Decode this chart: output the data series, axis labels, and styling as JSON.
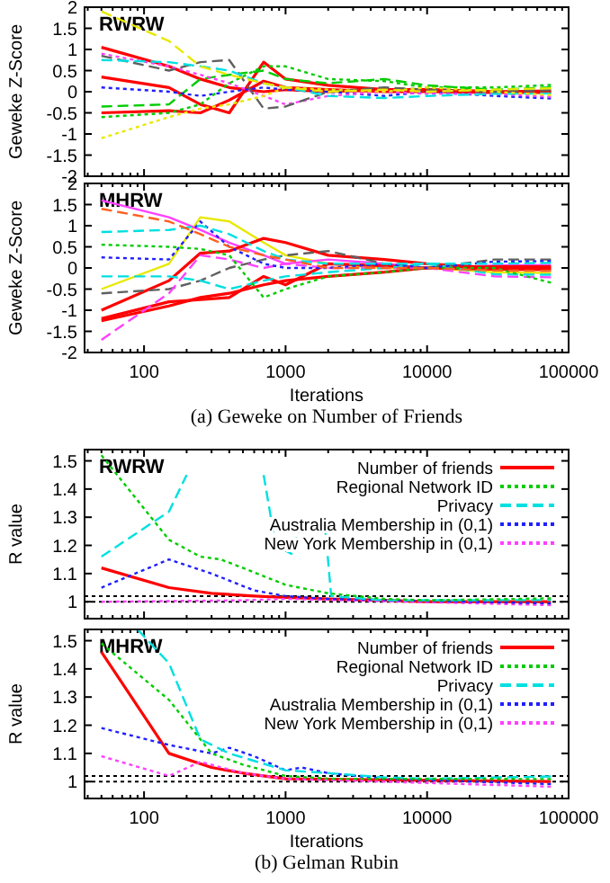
{
  "chart_data": [
    {
      "type": "line",
      "title": "RWRW",
      "ylabel": "Geweke Z-Score",
      "log": "x",
      "xlim": [
        38,
        100000
      ],
      "xticks": [
        {
          "value": 100,
          "label": null
        },
        {
          "value": 1000,
          "label": null
        },
        {
          "value": 10000,
          "label": null
        },
        {
          "value": 100000,
          "label": null
        }
      ],
      "ylim": [
        -2,
        2
      ],
      "yticks": [
        -2,
        -1.5,
        -1,
        -0.5,
        0,
        0.5,
        1,
        1.5,
        2
      ],
      "tick_labels": "y",
      "x": [
        50,
        150,
        250,
        400,
        700,
        1000,
        2000,
        5000,
        10000,
        30000,
        75000
      ],
      "series": [
        {
          "color": "#ff0000",
          "line_style": "solid",
          "values": [
            1.05,
            0.6,
            0.3,
            0.1,
            0.0,
            0.05,
            0.0,
            0.05,
            0.05,
            0.0,
            0.0
          ]
        },
        {
          "color": "#ff0000",
          "line_style": "solid",
          "values": [
            -0.5,
            -0.45,
            -0.5,
            -0.2,
            0.25,
            0.1,
            0.05,
            0.0,
            0.0,
            -0.02,
            -0.02
          ]
        },
        {
          "color": "#ff0000",
          "line_style": "solid",
          "values": [
            0.35,
            0.1,
            -0.3,
            -0.5,
            0.7,
            0.3,
            0.15,
            0.05,
            0.05,
            0.0,
            0.02
          ]
        },
        {
          "color": "#e8e800",
          "line_style": "dotted",
          "values": [
            -1.1,
            -0.6,
            -0.4,
            -0.3,
            -0.1,
            0.1,
            0.05,
            0.0,
            0.1,
            0.0,
            -0.08
          ]
        },
        {
          "color": "#e8e800",
          "line_style": "dashed",
          "values": [
            1.9,
            1.2,
            0.6,
            0.4,
            0.2,
            0.1,
            0.0,
            0.05,
            0.0,
            0.05,
            0.08
          ]
        },
        {
          "color": "#00cc00",
          "line_style": "dotted",
          "values": [
            -0.6,
            -0.5,
            -0.3,
            0.2,
            0.6,
            0.6,
            0.3,
            0.25,
            0.1,
            0.1,
            0.16
          ]
        },
        {
          "color": "#00e0e0",
          "line_style": "dashed",
          "values": [
            0.75,
            0.7,
            0.6,
            0.5,
            0.2,
            0.1,
            -0.1,
            -0.15,
            -0.1,
            -0.05,
            -0.04
          ]
        },
        {
          "color": "#606060",
          "line_style": "dashed",
          "values": [
            0.85,
            0.5,
            0.7,
            0.75,
            -0.4,
            -0.35,
            0.0,
            0.1,
            0.05,
            0.0,
            0.04
          ]
        },
        {
          "color": "#ff40ff",
          "line_style": "dotted",
          "values": [
            0.9,
            0.6,
            0.4,
            0.2,
            -0.1,
            -0.3,
            -0.1,
            0.0,
            -0.05,
            -0.05,
            -0.12
          ]
        },
        {
          "color": "#2020ff",
          "line_style": "dotted",
          "values": [
            0.1,
            0.0,
            -0.1,
            0.0,
            0.1,
            0.05,
            0.0,
            -0.1,
            0.0,
            -0.1,
            -0.16
          ]
        },
        {
          "color": "#00cc00",
          "line_style": "dashed",
          "values": [
            -0.35,
            -0.3,
            0.3,
            0.4,
            0.5,
            0.3,
            0.2,
            0.3,
            0.15,
            0.05,
            0.1
          ]
        }
      ]
    },
    {
      "type": "line",
      "title": "MHRW",
      "ylabel": "Geweke Z-Score",
      "xlabel": "Iterations",
      "log": "x",
      "xlim": [
        38,
        100000
      ],
      "xticks": [
        100,
        1000,
        10000,
        100000
      ],
      "ylim": [
        -2,
        2
      ],
      "yticks": [
        -2,
        -1.5,
        -1,
        -0.5,
        0,
        0.5,
        1,
        1.5,
        2
      ],
      "x": [
        50,
        150,
        250,
        400,
        700,
        1000,
        2000,
        5000,
        10000,
        30000,
        75000
      ],
      "annotations": [
        "(a)  Geweke on Number of Friends"
      ],
      "series": [
        {
          "color": "#ff0000",
          "line_style": "solid",
          "values": [
            -1.0,
            -0.3,
            0.35,
            0.4,
            0.7,
            0.6,
            0.3,
            0.2,
            0.1,
            0.0,
            0.0
          ]
        },
        {
          "color": "#ff0000",
          "line_style": "solid",
          "values": [
            -1.25,
            -0.9,
            -0.7,
            -0.6,
            -0.4,
            -0.3,
            -0.2,
            -0.1,
            0.0,
            -0.03,
            -0.04
          ]
        },
        {
          "color": "#ff0000",
          "line_style": "solid",
          "values": [
            -1.2,
            -0.8,
            -0.75,
            -0.7,
            -0.2,
            -0.4,
            0.1,
            0.05,
            0.0,
            0.03,
            0.03
          ]
        },
        {
          "color": "#ff40ff",
          "line_style": "solid",
          "values": [
            1.6,
            1.2,
            0.9,
            0.6,
            0.3,
            0.1,
            0.2,
            0.1,
            0.0,
            0.06,
            0.07
          ]
        },
        {
          "color": "#ff6020",
          "line_style": "dashed",
          "values": [
            1.4,
            1.1,
            0.8,
            0.5,
            0.3,
            0.2,
            0.0,
            0.0,
            0.0,
            -0.06,
            -0.07
          ]
        },
        {
          "color": "#00e0e0",
          "line_style": "dashed",
          "values": [
            0.85,
            0.9,
            1.0,
            0.8,
            0.4,
            0.2,
            0.1,
            0.1,
            0.1,
            0.1,
            0.12
          ]
        },
        {
          "color": "#00cc00",
          "line_style": "dotted",
          "values": [
            0.55,
            0.5,
            0.45,
            0.3,
            -0.7,
            -0.5,
            -0.2,
            -0.1,
            0.0,
            0.0,
            -0.35
          ]
        },
        {
          "color": "#2020ff",
          "line_style": "dotted",
          "values": [
            0.25,
            0.2,
            1.1,
            0.5,
            0.1,
            0.0,
            0.0,
            0.1,
            0.0,
            0.15,
            0.16
          ]
        },
        {
          "color": "#e8e800",
          "line_style": "solid",
          "values": [
            -0.5,
            0.1,
            1.2,
            1.1,
            0.6,
            0.3,
            0.1,
            0.0,
            0.0,
            -0.1,
            -0.12
          ]
        },
        {
          "color": "#00e0e0",
          "line_style": "dashed",
          "values": [
            -0.2,
            -0.2,
            -0.3,
            -0.5,
            -0.3,
            -0.2,
            -0.1,
            0.0,
            0.1,
            -0.15,
            -0.16
          ]
        },
        {
          "color": "#ff40ff",
          "line_style": "dashed",
          "values": [
            -1.7,
            -0.6,
            0.3,
            0.2,
            0.0,
            0.1,
            0.0,
            0.0,
            0.0,
            -0.2,
            -0.22
          ]
        },
        {
          "color": "#606060",
          "line_style": "dashed",
          "values": [
            -0.6,
            -0.5,
            -0.3,
            0.0,
            0.2,
            0.3,
            0.4,
            0.1,
            0.0,
            0.2,
            0.2
          ]
        }
      ]
    },
    {
      "type": "line",
      "title": "RWRW",
      "ylabel": "R value",
      "log": "x",
      "xlim": [
        38,
        100000
      ],
      "xticks": [
        {
          "value": 100,
          "label": null
        },
        {
          "value": 1000,
          "label": null
        },
        {
          "value": 10000,
          "label": null
        },
        {
          "value": 100000,
          "label": null
        }
      ],
      "ylim": [
        0.94,
        1.54
      ],
      "yticks": [
        1,
        1.1,
        1.2,
        1.3,
        1.4,
        1.5
      ],
      "tick_labels": "y",
      "legend": "top right",
      "ref_lines": [
        {
          "axis": "y",
          "value": 1,
          "color": "#000000",
          "line_style": "dotted"
        },
        {
          "axis": "y",
          "value": 1.02,
          "color": "#000000",
          "line_style": "dotted"
        }
      ],
      "series": [
        {
          "name": "Number of friends",
          "color": "#ff0000",
          "line_style": "solid",
          "x": [
            50,
            150,
            300,
            600,
            1000,
            2000,
            5000,
            10000,
            75000
          ],
          "values": [
            1.12,
            1.05,
            1.03,
            1.02,
            1.015,
            1.01,
            1.005,
            1.0,
            1.0
          ]
        },
        {
          "name": "Regional Network ID",
          "color": "#00cc00",
          "line_style": "dotted",
          "x": [
            50,
            150,
            250,
            350,
            500,
            1000,
            2000,
            5000,
            10000,
            75000
          ],
          "values": [
            1.52,
            1.22,
            1.16,
            1.15,
            1.12,
            1.06,
            1.03,
            1.01,
            1.005,
            1.012
          ]
        },
        {
          "name": "Privacy",
          "color": "#00e0e0",
          "line_style": "dashed",
          "x": [
            50,
            150,
            200,
            400,
            700,
            850,
            1100,
            1300,
            1900,
            2100,
            5000,
            75000
          ],
          "values": [
            1.16,
            1.32,
            1.45,
            null,
            1.45,
            1.2,
            1.17,
            1.28,
            1.27,
            1.02,
            1.005,
            1.006
          ]
        },
        {
          "name": "Australia Membership in (0,1)",
          "color": "#2020ff",
          "line_style": "dotted",
          "x": [
            50,
            150,
            300,
            600,
            1000,
            2000,
            75000
          ],
          "values": [
            1.05,
            1.15,
            1.1,
            1.04,
            1.02,
            1.01,
            0.994
          ]
        },
        {
          "name": "New York Membership in (0,1)",
          "color": "#ff40ff",
          "line_style": "dotted",
          "x": [
            50,
            500,
            1000,
            75000
          ],
          "values": [
            1.0,
            1.005,
            1.01,
            0.988
          ]
        }
      ]
    },
    {
      "type": "line",
      "title": "MHRW",
      "ylabel": "R value",
      "xlabel": "Iterations",
      "log": "x",
      "xlim": [
        38,
        100000
      ],
      "xticks": [
        100,
        1000,
        10000,
        100000
      ],
      "ylim": [
        0.94,
        1.54
      ],
      "yticks": [
        1,
        1.1,
        1.2,
        1.3,
        1.4,
        1.5
      ],
      "legend": "top right",
      "annotations": [
        "(b)  Gelman Rubin"
      ],
      "ref_lines": [
        {
          "axis": "y",
          "value": 1,
          "color": "#000000",
          "line_style": "dotted"
        },
        {
          "axis": "y",
          "value": 1.02,
          "color": "#000000",
          "line_style": "dotted"
        }
      ],
      "series": [
        {
          "name": "Number of friends",
          "color": "#ff0000",
          "line_style": "solid",
          "x": [
            50,
            150,
            300,
            500,
            1000,
            75000
          ],
          "values": [
            1.46,
            1.1,
            1.05,
            1.03,
            1.01,
            1.0
          ]
        },
        {
          "name": "Regional Network ID",
          "color": "#00cc00",
          "line_style": "dotted",
          "x": [
            50,
            150,
            300,
            500,
            1000,
            2000,
            75000
          ],
          "values": [
            1.49,
            1.29,
            1.1,
            1.06,
            1.02,
            1.01,
            1.009
          ]
        },
        {
          "name": "Privacy",
          "color": "#00e0e0",
          "line_style": "dashed",
          "x": [
            90,
            150,
            250,
            400,
            1000,
            2000,
            5000,
            10000,
            75000
          ],
          "values": [
            1.54,
            1.42,
            1.15,
            1.1,
            1.04,
            1.03,
            1.015,
            1.01,
            1.018
          ]
        },
        {
          "name": "Australia Membership in (0,1)",
          "color": "#2020ff",
          "line_style": "dotted",
          "x": [
            50,
            150,
            300,
            400,
            600,
            1000,
            1300,
            2000,
            5000,
            75000
          ],
          "values": [
            1.19,
            1.13,
            1.1,
            1.12,
            1.09,
            1.04,
            1.05,
            1.03,
            1.01,
            0.991
          ]
        },
        {
          "name": "New York Membership in (0,1)",
          "color": "#ff40ff",
          "line_style": "dotted",
          "x": [
            50,
            150,
            250,
            500,
            1000,
            75000
          ],
          "values": [
            1.09,
            1.02,
            1.07,
            1.03,
            1.01,
            0.982
          ]
        }
      ]
    }
  ]
}
